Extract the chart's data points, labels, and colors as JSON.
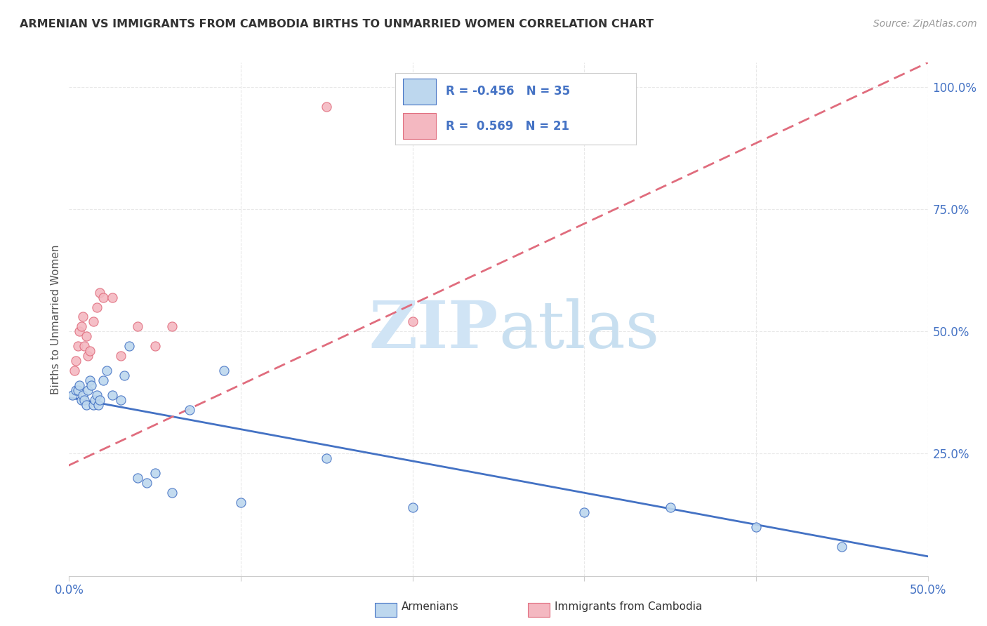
{
  "title": "ARMENIAN VS IMMIGRANTS FROM CAMBODIA BIRTHS TO UNMARRIED WOMEN CORRELATION CHART",
  "source": "Source: ZipAtlas.com",
  "ylabel": "Births to Unmarried Women",
  "xlim": [
    0.0,
    0.5
  ],
  "ylim": [
    0.0,
    1.05
  ],
  "xticks": [
    0.0,
    0.1,
    0.2,
    0.3,
    0.4,
    0.5
  ],
  "xticklabels": [
    "0.0%",
    "",
    "",
    "",
    "",
    "50.0%"
  ],
  "yticks_right": [
    0.25,
    0.5,
    0.75,
    1.0
  ],
  "yticklabels_right": [
    "25.0%",
    "50.0%",
    "75.0%",
    "100.0%"
  ],
  "armenian_R": "-0.456",
  "armenian_N": "35",
  "cambodia_R": "0.569",
  "cambodia_N": "21",
  "armenian_color": "#bdd7ee",
  "cambodia_color": "#f4b8c1",
  "armenian_line_color": "#4472c4",
  "cambodia_line_color": "#e06c7d",
  "tick_label_color": "#4472c4",
  "legend_text_color": "#4472c4",
  "watermark_zip": "ZIP",
  "watermark_atlas": "atlas",
  "armenian_scatter_x": [
    0.002,
    0.004,
    0.005,
    0.006,
    0.007,
    0.008,
    0.009,
    0.01,
    0.011,
    0.012,
    0.013,
    0.014,
    0.015,
    0.016,
    0.017,
    0.018,
    0.02,
    0.022,
    0.025,
    0.03,
    0.032,
    0.035,
    0.04,
    0.045,
    0.05,
    0.06,
    0.07,
    0.09,
    0.1,
    0.15,
    0.2,
    0.3,
    0.35,
    0.4,
    0.45
  ],
  "armenian_scatter_y": [
    0.37,
    0.38,
    0.38,
    0.39,
    0.36,
    0.37,
    0.36,
    0.35,
    0.38,
    0.4,
    0.39,
    0.35,
    0.36,
    0.37,
    0.35,
    0.36,
    0.4,
    0.42,
    0.37,
    0.36,
    0.41,
    0.47,
    0.2,
    0.19,
    0.21,
    0.17,
    0.34,
    0.42,
    0.15,
    0.24,
    0.14,
    0.13,
    0.14,
    0.1,
    0.06
  ],
  "cambodia_scatter_x": [
    0.003,
    0.004,
    0.005,
    0.006,
    0.007,
    0.008,
    0.009,
    0.01,
    0.011,
    0.012,
    0.014,
    0.016,
    0.018,
    0.02,
    0.025,
    0.03,
    0.04,
    0.05,
    0.06,
    0.15,
    0.2
  ],
  "cambodia_scatter_y": [
    0.42,
    0.44,
    0.47,
    0.5,
    0.51,
    0.53,
    0.47,
    0.49,
    0.45,
    0.46,
    0.52,
    0.55,
    0.58,
    0.57,
    0.57,
    0.45,
    0.51,
    0.47,
    0.51,
    0.96,
    0.52
  ],
  "armenian_trendline_x": [
    0.0,
    0.5
  ],
  "armenian_trendline_y": [
    0.365,
    0.04
  ],
  "cambodia_trendline_x": [
    -0.01,
    0.5
  ],
  "cambodia_trendline_y": [
    0.21,
    1.05
  ],
  "background_color": "#ffffff",
  "grid_color": "#e8e8e8"
}
